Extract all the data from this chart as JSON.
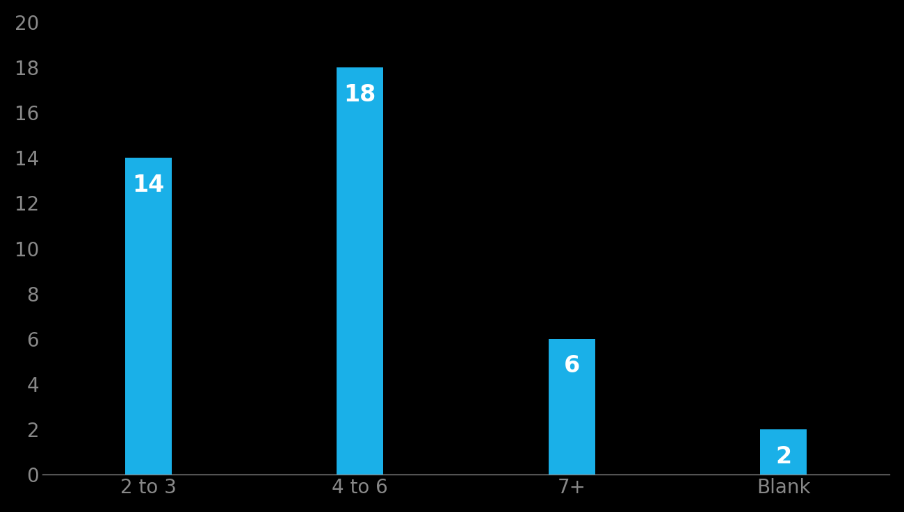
{
  "categories": [
    "2 to 3",
    "4 to 6",
    "7+",
    "Blank"
  ],
  "values": [
    14,
    18,
    6,
    2
  ],
  "bar_color": "#1AB0E8",
  "background_color": "#000000",
  "tick_label_color": "#888888",
  "label_color": "#ffffff",
  "ylim": [
    0,
    20
  ],
  "yticks": [
    0,
    2,
    4,
    6,
    8,
    10,
    12,
    14,
    16,
    18,
    20
  ],
  "value_label_fontsize": 24,
  "tick_fontsize": 20,
  "bar_width": 0.22
}
